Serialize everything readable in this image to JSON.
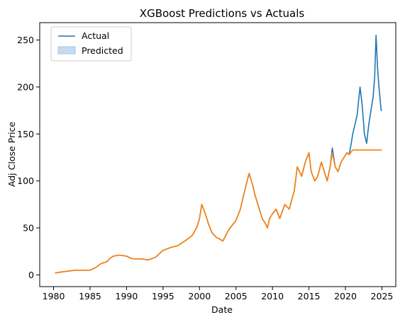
{
  "chart_data": {
    "type": "line",
    "title": "XGBoost Predictions vs Actuals",
    "xlabel": "Date",
    "ylabel": "Adj Close Price",
    "xlim": [
      1978.1,
      2026.9
    ],
    "ylim": [
      -12.5,
      268.5
    ],
    "x_ticks": [
      1980,
      1985,
      1990,
      1995,
      2000,
      2005,
      2010,
      2015,
      2020,
      2025
    ],
    "y_ticks": [
      0,
      50,
      100,
      150,
      200,
      250
    ],
    "grid": false,
    "legend_position": "top-left",
    "colors": {
      "actual": "#1f77b4",
      "predicted": "#ff7f0e",
      "predicted_band": "#c6dbef"
    },
    "series": [
      {
        "name": "Actual",
        "x": [
          1980.2,
          1981.0,
          1982.0,
          1983.0,
          1984.0,
          1985.0,
          1985.8,
          1986.5,
          1987.3,
          1987.8,
          1988.2,
          1989.0,
          1990.0,
          1990.5,
          1991.0,
          1992.0,
          1993.0,
          1994.0,
          1995.0,
          1996.0,
          1997.0,
          1998.0,
          1999.0,
          1999.6,
          2000.0,
          2000.3,
          2000.8,
          2001.2,
          2001.7,
          2002.3,
          2002.8,
          2003.2,
          2004.0,
          2005.0,
          2005.6,
          2006.2,
          2006.8,
          2007.3,
          2007.6,
          2008.0,
          2008.6,
          2009.0,
          2009.3,
          2009.6,
          2010.0,
          2010.5,
          2011.0,
          2011.7,
          2012.3,
          2013.0,
          2013.4,
          2014.0,
          2014.5,
          2015.0,
          2015.3,
          2015.8,
          2016.2,
          2016.7,
          2017.1,
          2017.5,
          2017.9,
          2018.2,
          2018.6,
          2019.0,
          2019.4,
          2019.8,
          2020.2,
          2020.5,
          2020.8,
          2021.0,
          2021.3,
          2021.6,
          2021.8,
          2022.0,
          2022.3,
          2022.6,
          2022.9,
          2023.2,
          2023.5,
          2023.8,
          2024.0,
          2024.2,
          2024.4,
          2024.6,
          2024.9,
          2025.0
        ],
        "y": [
          2,
          3,
          4,
          5,
          5,
          5,
          8,
          12,
          14,
          18,
          20,
          21,
          20,
          18,
          17,
          17,
          16,
          19,
          26,
          29,
          31,
          36,
          42,
          50,
          60,
          75,
          65,
          55,
          45,
          40,
          38,
          36,
          48,
          58,
          70,
          90,
          108,
          95,
          85,
          75,
          60,
          55,
          50,
          60,
          65,
          70,
          60,
          75,
          70,
          90,
          115,
          105,
          120,
          130,
          110,
          100,
          105,
          120,
          110,
          100,
          115,
          135,
          115,
          110,
          120,
          125,
          130,
          128,
          140,
          150,
          160,
          170,
          185,
          200,
          180,
          150,
          140,
          160,
          175,
          190,
          210,
          255,
          220,
          200,
          175,
          175
        ]
      },
      {
        "name": "Predicted",
        "x": [
          1980.2,
          1981.0,
          1982.0,
          1983.0,
          1984.0,
          1985.0,
          1985.8,
          1986.5,
          1987.3,
          1987.8,
          1988.2,
          1989.0,
          1990.0,
          1990.5,
          1991.0,
          1992.0,
          1993.0,
          1994.0,
          1995.0,
          1996.0,
          1997.0,
          1998.0,
          1999.0,
          1999.6,
          2000.0,
          2000.3,
          2000.8,
          2001.2,
          2001.7,
          2002.3,
          2002.8,
          2003.2,
          2004.0,
          2005.0,
          2005.6,
          2006.2,
          2006.8,
          2007.3,
          2007.6,
          2008.0,
          2008.6,
          2009.0,
          2009.3,
          2009.6,
          2010.0,
          2010.5,
          2011.0,
          2011.7,
          2012.3,
          2013.0,
          2013.4,
          2014.0,
          2014.5,
          2015.0,
          2015.3,
          2015.8,
          2016.2,
          2016.7,
          2017.1,
          2017.5,
          2017.9,
          2018.2,
          2018.6,
          2019.0,
          2019.4,
          2019.8,
          2020.2,
          2020.5,
          2021.0,
          2022.0,
          2023.0,
          2024.0,
          2025.0
        ],
        "y": [
          2,
          3,
          4,
          5,
          5,
          5,
          8,
          12,
          14,
          18,
          20,
          21,
          20,
          18,
          17,
          17,
          16,
          19,
          26,
          29,
          31,
          36,
          42,
          50,
          60,
          75,
          65,
          55,
          45,
          40,
          38,
          36,
          48,
          58,
          70,
          90,
          108,
          95,
          85,
          75,
          60,
          55,
          50,
          60,
          65,
          70,
          60,
          75,
          70,
          90,
          115,
          105,
          120,
          130,
          110,
          100,
          105,
          120,
          110,
          100,
          115,
          130,
          115,
          110,
          120,
          125,
          130,
          128,
          133,
          133,
          133,
          133,
          133
        ]
      }
    ]
  }
}
